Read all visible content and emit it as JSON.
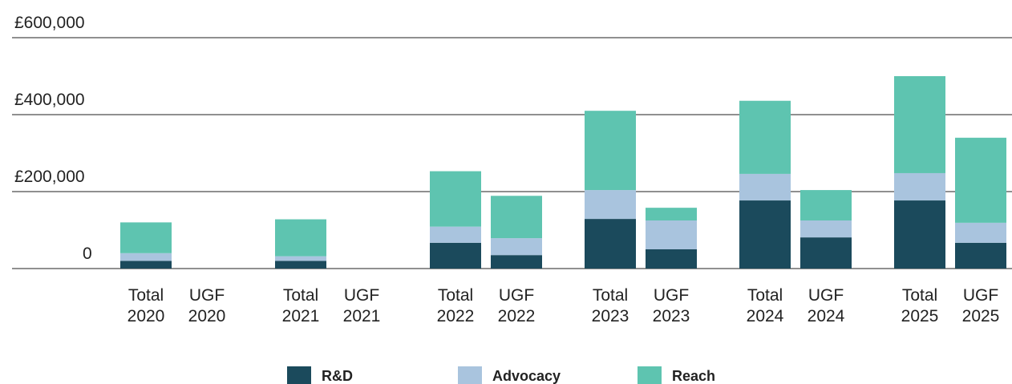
{
  "chart_data": {
    "type": "stacked-bar",
    "categories": [
      "Total 2020",
      "UGF 2020",
      "Total 2021",
      "UGF 2021",
      "Total 2022",
      "UGF 2022",
      "Total 2023",
      "UGF 2023",
      "Total 2024",
      "UGF 2024",
      "Total 2025",
      "UGF 2025"
    ],
    "series": [
      {
        "name": "R&D",
        "color": "#1b4a5c",
        "values": [
          20000,
          0,
          20000,
          0,
          67000,
          35000,
          129000,
          50000,
          177000,
          81000,
          177000,
          67000
        ]
      },
      {
        "name": "Advocacy",
        "color": "#a9c4de",
        "values": [
          20000,
          0,
          12000,
          0,
          42000,
          44000,
          75000,
          75000,
          69000,
          44000,
          71000,
          52000
        ]
      },
      {
        "name": "Reach",
        "color": "#5ec4b0",
        "values": [
          80000,
          0,
          96000,
          0,
          144000,
          110000,
          206000,
          33000,
          190000,
          79000,
          252000,
          221000
        ]
      }
    ],
    "ylim": [
      0,
      600000
    ],
    "yticks": [
      0,
      {
        "value": 200000,
        "label": "£200,000"
      },
      {
        "value": 400000,
        "label": "£400,000"
      },
      {
        "value": 600000,
        "label": "£600,000"
      }
    ],
    "grid": true,
    "legend": "bottom"
  }
}
